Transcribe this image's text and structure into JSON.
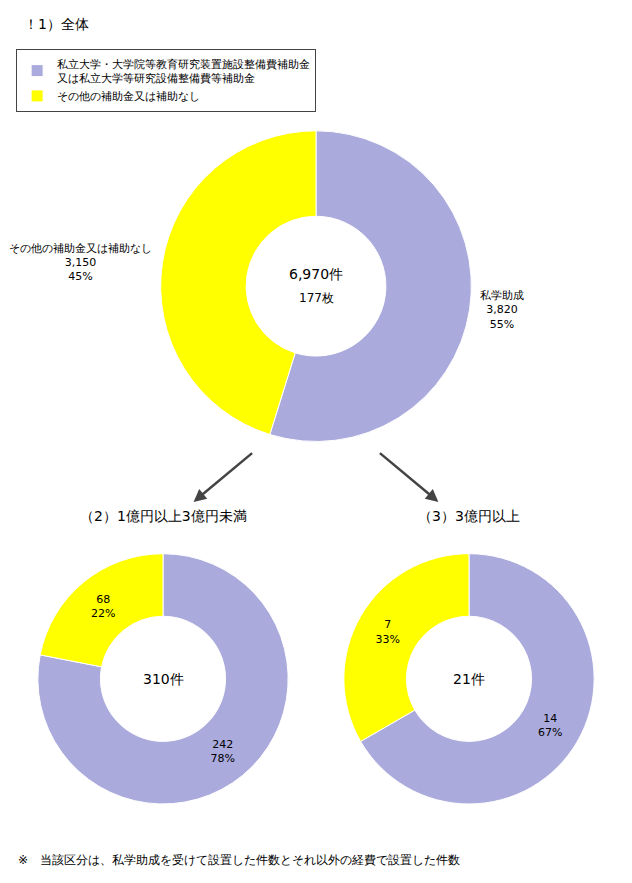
{
  "chart_data": [
    {
      "type": "pie",
      "title": "！1）全体",
      "categories": [
        "私立大学・大学院等教育研究装置施設整備費補助金\n又は私立大学等研究設備整備費等補助金",
        "その他の補助金又は補助なし"
      ],
      "values": [
        3820,
        3150
      ],
      "value_labels": [
        "私学助成\n3,820\n55%",
        "その他の補助金又は補助なし\n3,150\n45%"
      ],
      "colors": [
        "#aaaadd",
        "#ffff00"
      ],
      "annotations": [
        "6,970件",
        "177枚"
      ],
      "legend": "upper left"
    },
    {
      "type": "pie",
      "title": "（2）1億円以上3億円未満",
      "categories": [
        "私立大学・大学院等教育研究装置施設整備費補助金\n又は私立大学等研究設備整備費等補助金",
        "その他の補助金又は補助なし"
      ],
      "values": [
        242,
        68
      ],
      "value_labels": [
        "242\n78%",
        "68\n22%"
      ],
      "colors": [
        "#aaaadd",
        "#ffff00"
      ],
      "annotations": [
        "310件"
      ]
    },
    {
      "type": "pie",
      "title": "（3）3億円以上",
      "categories": [
        "私立大学・大学院等教育研究装置施設整備費補助金\n又は私立大学等研究設備整備費等補助金",
        "その他の補助金又は補助なし"
      ],
      "values": [
        14,
        7
      ],
      "value_labels": [
        "14\n67%",
        "7\n33%"
      ],
      "colors": [
        "#aaaadd",
        "#ffff00"
      ],
      "annotations": [
        "21件"
      ]
    }
  ],
  "footnote": "※　当該区分は、私学助成を受けて設置した件数とそれ以外の経費で設置した件数"
}
